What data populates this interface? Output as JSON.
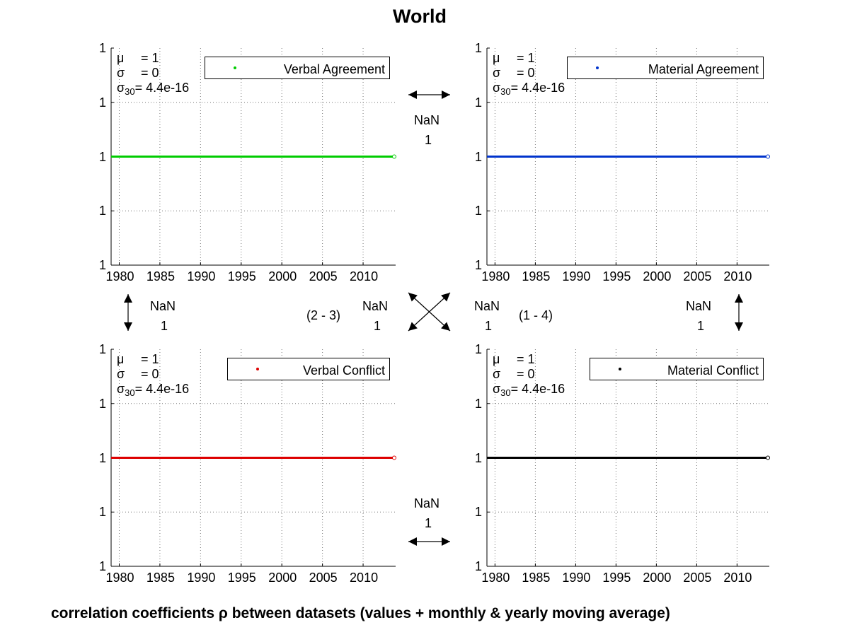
{
  "title": "World",
  "caption": "correlation coefficients ρ between datasets (values + monthly & yearly moving average)",
  "x_ticks": [
    "1980",
    "1985",
    "1990",
    "1995",
    "2000",
    "2005",
    "2010"
  ],
  "y_ticks": [
    "1",
    "1",
    "1",
    "1",
    "1"
  ],
  "stats": {
    "mu_symbol": "μ",
    "mu_value": "= 1",
    "sigma_symbol": "σ",
    "sigma_value": "= 0",
    "sigma30_symbol": "σ",
    "sigma30_sub": "30",
    "sigma30_value": "= 4.4e-16"
  },
  "correlations": {
    "top_nan": "NaN",
    "top_one": "1",
    "left_nan": "NaN",
    "left_one": "1",
    "diag_left_label": "(2 - 3)",
    "diag_left_nan": "NaN",
    "diag_left_one": "1",
    "diag_right_nan": "NaN",
    "diag_right_one": "1",
    "diag_right_label": "(1 - 4)",
    "right_nan": "NaN",
    "right_one": "1",
    "bottom_nan": "NaN",
    "bottom_one": "1"
  },
  "chart_data": [
    {
      "type": "line",
      "legend": "Verbal Agreement",
      "color": "#00cc00",
      "x": [
        1979,
        2014
      ],
      "y": [
        1,
        1
      ],
      "xlim": [
        1979,
        2014
      ],
      "xticks": [
        1980,
        1985,
        1990,
        1995,
        2000,
        2005,
        2010
      ],
      "grid": true,
      "legend_position": "top-right",
      "stats": {
        "mu": "1",
        "sigma": "0",
        "sigma30": "4.4e-16"
      }
    },
    {
      "type": "line",
      "legend": "Material Agreement",
      "color": "#0033cc",
      "x": [
        1979,
        2014
      ],
      "y": [
        1,
        1
      ],
      "xlim": [
        1979,
        2014
      ],
      "xticks": [
        1980,
        1985,
        1990,
        1995,
        2000,
        2005,
        2010
      ],
      "grid": true,
      "legend_position": "top-right",
      "stats": {
        "mu": "1",
        "sigma": "0",
        "sigma30": "4.4e-16"
      }
    },
    {
      "type": "line",
      "legend": "Verbal Conflict",
      "color": "#dd0000",
      "x": [
        1979,
        2014
      ],
      "y": [
        1,
        1
      ],
      "xlim": [
        1979,
        2014
      ],
      "xticks": [
        1980,
        1985,
        1990,
        1995,
        2000,
        2005,
        2010
      ],
      "grid": true,
      "legend_position": "top-right",
      "stats": {
        "mu": "1",
        "sigma": "0",
        "sigma30": "4.4e-16"
      }
    },
    {
      "type": "line",
      "legend": "Material Conflict",
      "color": "#000000",
      "x": [
        1979,
        2014
      ],
      "y": [
        1,
        1
      ],
      "xlim": [
        1979,
        2014
      ],
      "xticks": [
        1980,
        1985,
        1990,
        1995,
        2000,
        2005,
        2010
      ],
      "grid": true,
      "legend_position": "top-right",
      "stats": {
        "mu": "1",
        "sigma": "0",
        "sigma30": "4.4e-16"
      }
    }
  ]
}
